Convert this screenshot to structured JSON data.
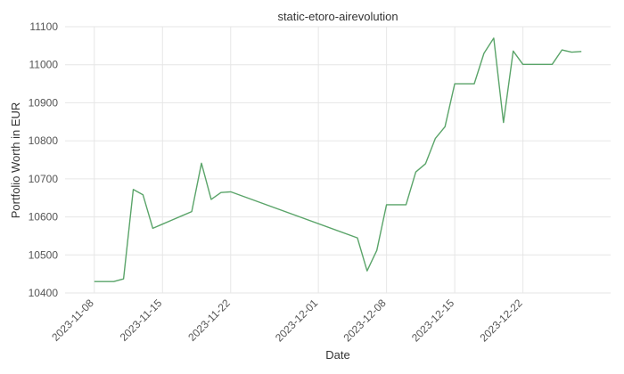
{
  "chart_data": {
    "type": "line",
    "title": "static-etoro-airevolution",
    "xlabel": "Date",
    "ylabel": "Portfolio Worth in EUR",
    "xlim": [
      "2023-11-05",
      "2023-12-31"
    ],
    "ylim": [
      10400,
      11100
    ],
    "grid": true,
    "x_ticks": [
      "2023-11-08",
      "2023-11-15",
      "2023-11-22",
      "2023-12-01",
      "2023-12-08",
      "2023-12-15",
      "2023-12-22"
    ],
    "y_ticks": [
      10400,
      10500,
      10600,
      10700,
      10800,
      10900,
      11000,
      11100
    ],
    "colors": {
      "line": "#5aa469",
      "grid": "#e6e6e6"
    },
    "series": [
      {
        "x": [
          "2023-11-08",
          "2023-11-09",
          "2023-11-10",
          "2023-11-11",
          "2023-11-12",
          "2023-11-13",
          "2023-11-14",
          "2023-11-15",
          "2023-11-16",
          "2023-11-17",
          "2023-11-18",
          "2023-11-19",
          "2023-11-20",
          "2023-11-21",
          "2023-11-22",
          "2023-12-05",
          "2023-12-06",
          "2023-12-07",
          "2023-12-08",
          "2023-12-09",
          "2023-12-10",
          "2023-12-11",
          "2023-12-12",
          "2023-12-13",
          "2023-12-14",
          "2023-12-15",
          "2023-12-16",
          "2023-12-17",
          "2023-12-18",
          "2023-12-19",
          "2023-12-20",
          "2023-12-21",
          "2023-12-22",
          "2023-12-23",
          "2023-12-24",
          "2023-12-25",
          "2023-12-26",
          "2023-12-27",
          "2023-12-28"
        ],
        "values": [
          10430,
          10430,
          10430,
          10437,
          10672,
          10658,
          10570,
          10581,
          10592,
          10603,
          10614,
          10741,
          10646,
          10664,
          10666,
          10545,
          10458,
          10512,
          10632,
          10632,
          10632,
          10718,
          10740,
          10806,
          10837,
          10950,
          10950,
          10950,
          11030,
          11070,
          10848,
          11036,
          11001,
          11001,
          11001,
          11001,
          11039,
          11033,
          11035
        ]
      }
    ]
  }
}
